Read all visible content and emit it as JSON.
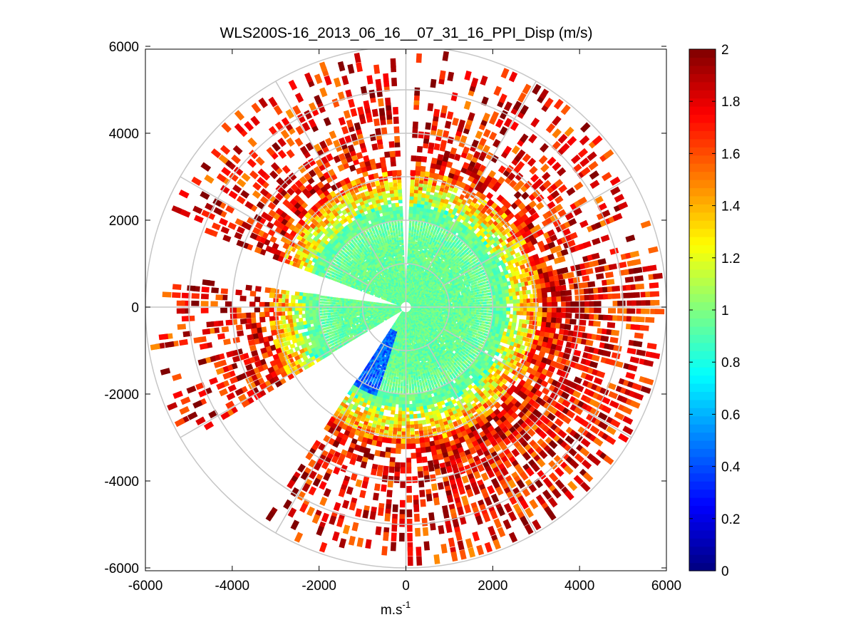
{
  "chart_data": {
    "type": "heatmap",
    "subtype": "polar-ppi-scan",
    "title": "WLS200S-16_2013_06_16__07_31_16_PPI_Disp (m/s)",
    "xlabel": "m.s",
    "xlabel_superscript": "-1",
    "ylabel": "",
    "xlim": [
      -6000,
      6000
    ],
    "ylim": [
      -6000,
      6000
    ],
    "xticks": [
      -6000,
      -4000,
      -2000,
      0,
      2000,
      4000,
      6000
    ],
    "yticks": [
      6000,
      4000,
      2000,
      0,
      -2000,
      -4000,
      -6000
    ],
    "xtick_labels": [
      "-6000",
      "-4000",
      "-2000",
      "0",
      "2000",
      "4000",
      "6000"
    ],
    "ytick_labels": [
      "6000",
      "4000",
      "2000",
      "0",
      "-2000",
      "-4000",
      "-6000"
    ],
    "polar_grid": {
      "ring_radii": [
        1000,
        2000,
        3000,
        4000,
        5000,
        6000
      ],
      "spoke_angles_deg": [
        0,
        30,
        60,
        90,
        120,
        150,
        180,
        210,
        240,
        270,
        300,
        330
      ]
    },
    "scan_max_range": 5900,
    "data_gaps": [
      {
        "description": "no-data sector SW",
        "from_deg": 213,
        "to_deg": 236
      },
      {
        "description": "no-data sector W-NW",
        "from_deg": 160,
        "to_deg": 172
      },
      {
        "description": "no-data sector N",
        "from_deg": 89,
        "to_deg": 91
      }
    ],
    "field_description": [
      {
        "range_m": [
          0,
          2300
        ],
        "value_approx": 0.95,
        "region": "inner core"
      },
      {
        "range_m": [
          2300,
          3200
        ],
        "value_approx": 1.2,
        "region": "transition"
      },
      {
        "range_m": [
          3200,
          5900
        ],
        "value_approx": 1.85,
        "region": "outer, sparse"
      },
      {
        "sector_deg": [
          230,
          250
        ],
        "range_m": [
          600,
          2200
        ],
        "value_approx": 0.45,
        "region": "low-dispersion SSW patch"
      }
    ],
    "colorbar": {
      "colormap": "jet",
      "clim": [
        0,
        2
      ],
      "ticks": [
        0,
        0.2,
        0.4,
        0.6,
        0.8,
        1,
        1.2,
        1.4,
        1.6,
        1.8,
        2
      ],
      "tick_labels": [
        "0",
        "0.2",
        "0.4",
        "0.6",
        "0.8",
        "1",
        "1.2",
        "1.4",
        "1.6",
        "1.8",
        "2"
      ]
    }
  }
}
